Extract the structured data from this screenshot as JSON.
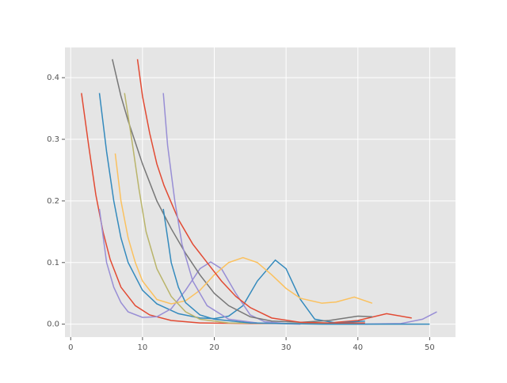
{
  "chart_data": {
    "type": "line",
    "xlim": [
      -0.8,
      53.6
    ],
    "ylim": [
      -0.021,
      0.449
    ],
    "xticks": [
      0,
      10,
      20,
      30,
      40,
      50
    ],
    "yticks": [
      {
        "value": 0,
        "label": "0.0"
      },
      0.1,
      0.2,
      0.3,
      0.4
    ],
    "grid": true,
    "series": [
      {
        "color": "#E24A33",
        "x": [
          1.5,
          2.5,
          3.5,
          4.5,
          5.5,
          7,
          9,
          11,
          14,
          18,
          25,
          35,
          40,
          44,
          47.5
        ],
        "values": [
          0.375,
          0.29,
          0.21,
          0.15,
          0.105,
          0.06,
          0.03,
          0.015,
          0.006,
          0.002,
          0.001,
          0.001,
          0.006,
          0.017,
          0.01
        ]
      },
      {
        "color": "#348ABD",
        "x": [
          4,
          5,
          6,
          7,
          8,
          10,
          12,
          15,
          18,
          20,
          22,
          24,
          26,
          28.5,
          30,
          32,
          34,
          37,
          41
        ],
        "values": [
          0.375,
          0.28,
          0.2,
          0.14,
          0.1,
          0.055,
          0.033,
          0.017,
          0.01,
          0.009,
          0.013,
          0.03,
          0.07,
          0.104,
          0.09,
          0.04,
          0.008,
          0.002,
          0.005
        ]
      },
      {
        "color": "#988ED5",
        "x": [
          4,
          5,
          6,
          7,
          8,
          10,
          12,
          14,
          16,
          18,
          19.5,
          21,
          23,
          25,
          27,
          30,
          40,
          46,
          49,
          51
        ],
        "values": [
          0.187,
          0.1,
          0.06,
          0.035,
          0.02,
          0.011,
          0.012,
          0.025,
          0.055,
          0.09,
          0.101,
          0.09,
          0.05,
          0.015,
          0.004,
          0.001,
          0,
          0.001,
          0.008,
          0.02
        ]
      },
      {
        "color": "#777777",
        "x": [
          5.8,
          7,
          8,
          10,
          12,
          14,
          16,
          18,
          20,
          22,
          25,
          28,
          32,
          36,
          40,
          42
        ],
        "values": [
          0.43,
          0.37,
          0.33,
          0.26,
          0.2,
          0.155,
          0.115,
          0.08,
          0.05,
          0.03,
          0.012,
          0.005,
          0.003,
          0.006,
          0.013,
          0.012
        ]
      },
      {
        "color": "#FBC15E",
        "x": [
          6.2,
          7,
          8,
          9,
          10,
          12,
          14,
          16,
          18,
          20,
          22,
          24,
          26,
          28,
          30,
          32,
          35,
          37,
          39.5,
          42
        ],
        "values": [
          0.277,
          0.2,
          0.14,
          0.1,
          0.07,
          0.04,
          0.033,
          0.038,
          0.055,
          0.08,
          0.1,
          0.108,
          0.1,
          0.08,
          0.058,
          0.042,
          0.034,
          0.036,
          0.044,
          0.034
        ]
      },
      {
        "color": "#B9B46A",
        "x": [
          7.5,
          8.5,
          9.5,
          10.5,
          12,
          14,
          16,
          18,
          22,
          30,
          40
        ],
        "values": [
          0.375,
          0.3,
          0.22,
          0.15,
          0.09,
          0.045,
          0.02,
          0.008,
          0.002,
          0.001,
          0
        ]
      },
      {
        "color": "#E24A33",
        "x": [
          9.3,
          10,
          11,
          12,
          13,
          15,
          17,
          19,
          21,
          23,
          25,
          28,
          32,
          36,
          41
        ],
        "values": [
          0.43,
          0.37,
          0.31,
          0.26,
          0.225,
          0.17,
          0.13,
          0.1,
          0.07,
          0.045,
          0.027,
          0.01,
          0.003,
          0.002,
          0.002
        ]
      },
      {
        "color": "#988ED5",
        "x": [
          12.9,
          13.5,
          14.5,
          15.5,
          17,
          19,
          22,
          26,
          32
        ],
        "values": [
          0.375,
          0.29,
          0.2,
          0.13,
          0.07,
          0.03,
          0.008,
          0.002,
          0
        ]
      },
      {
        "color": "#348ABD",
        "x": [
          12.9,
          13.5,
          14,
          15,
          16,
          18,
          20,
          25,
          35,
          50
        ],
        "values": [
          0.187,
          0.14,
          0.1,
          0.06,
          0.035,
          0.015,
          0.008,
          0.002,
          0,
          0
        ]
      }
    ]
  }
}
